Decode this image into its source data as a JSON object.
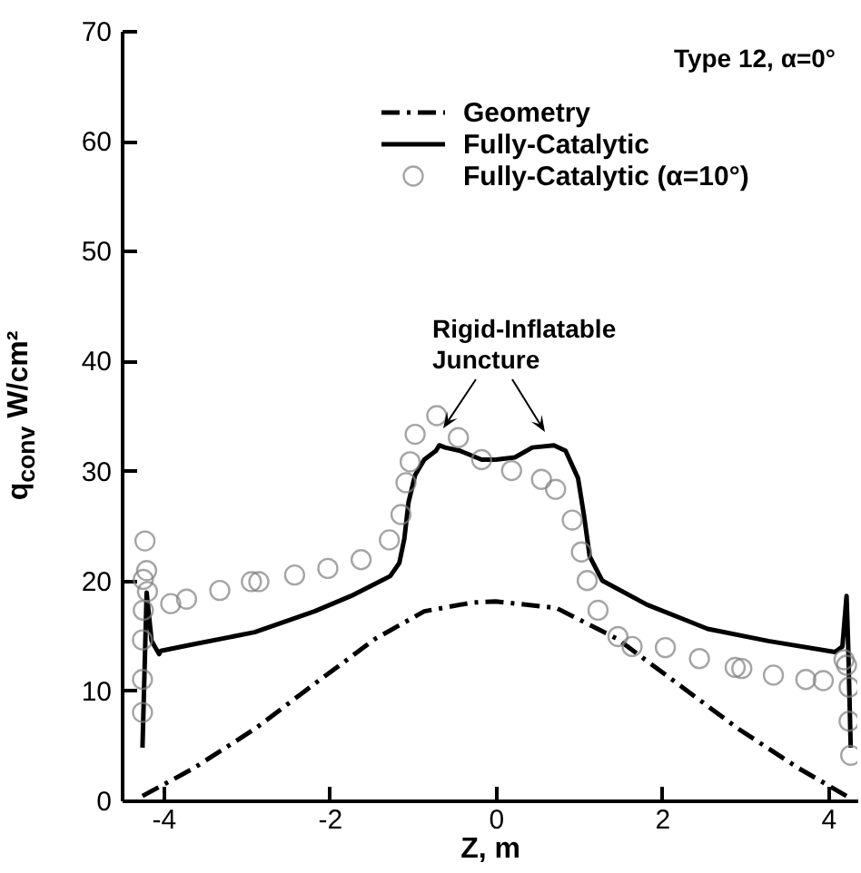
{
  "chart_data": {
    "type": "line",
    "xlabel": "Z, m",
    "ylabel": "q$_{conv}$ W/cm²",
    "legend_title": "Type 12, α=0°",
    "legend": "top right",
    "xlim": [
      -4.5,
      4.35
    ],
    "ylim": [
      0,
      70
    ],
    "xticks": [
      -4,
      -2,
      0,
      2,
      4
    ],
    "yticks": [
      0,
      10,
      20,
      30,
      40,
      50,
      60,
      70
    ],
    "grid": false,
    "annotations": [
      "Rigid-Inflatable Juncture"
    ],
    "series": [
      {
        "name": "Geometry",
        "color": "#000000",
        "line_style": "dashdot",
        "x": [
          -4.25,
          -3.64,
          -2.9,
          -2.18,
          -1.45,
          -0.86,
          -0.28,
          0,
          0.73,
          1.46,
          2.19,
          2.92,
          3.65,
          4.22
        ],
        "values": [
          0.4,
          2.9,
          6.5,
          10.6,
          14.7,
          17.2,
          18,
          18.1,
          17.5,
          14.7,
          10.6,
          6.5,
          2.9,
          0.4
        ]
      },
      {
        "name": "Fully-Catalytic",
        "color": "#000000",
        "line_style": "solid",
        "x": [
          -4.25,
          -4.2,
          -4.14,
          -4.05,
          -4.03,
          -3.64,
          -2.9,
          -2.18,
          -1.74,
          -1.45,
          -1.27,
          -1.16,
          -1.1,
          -1.05,
          -0.97,
          -0.86,
          -0.72,
          -0.68,
          -0.61,
          -0.43,
          -0.17,
          0,
          0.23,
          0.44,
          0.7,
          0.84,
          0.99,
          1.06,
          1.13,
          1.28,
          1.82,
          2.55,
          3.28,
          4.08,
          4.17,
          4.22,
          4.24,
          4.27
        ],
        "values": [
          4.8,
          18.9,
          14.5,
          13.3,
          13.6,
          14.2,
          15.3,
          17.2,
          18.6,
          19.7,
          20.4,
          21.6,
          23.8,
          27.1,
          29.6,
          31,
          31.8,
          32.3,
          32.1,
          31.8,
          31,
          31,
          31.2,
          32.1,
          32.3,
          31.8,
          29.3,
          26,
          22.2,
          20,
          17.8,
          15.6,
          14.5,
          13.5,
          14,
          18.6,
          14,
          4.8
        ]
      },
      {
        "name": "Fully-Catalytic (α=10°)",
        "type": "scatter",
        "marker": "circle",
        "color": "#808080",
        "x": [
          -4.22,
          -4.2,
          -4.24,
          -4.19,
          -4.24,
          -4.25,
          -4.25,
          -4.25,
          -3.91,
          -3.72,
          -3.32,
          -2.94,
          -2.85,
          -2.42,
          -2.02,
          -1.62,
          -1.28,
          -1.14,
          -1.08,
          -1.03,
          -0.97,
          -0.71,
          -0.45,
          -0.17,
          0.19,
          0.55,
          0.72,
          0.92,
          1.03,
          1.1,
          1.23,
          1.47,
          1.64,
          2.04,
          2.45,
          2.88,
          2.96,
          3.34,
          3.73,
          3.94,
          4.19,
          4.22,
          4.25,
          4.25,
          4.27
        ],
        "values": [
          23.6,
          20.9,
          20.1,
          19,
          17.3,
          14.6,
          11,
          8,
          17.9,
          18.3,
          19.1,
          19.9,
          19.9,
          20.5,
          21.1,
          21.9,
          23.7,
          26,
          28.9,
          30.8,
          33.3,
          35,
          33,
          31,
          30,
          29.2,
          28.3,
          25.5,
          22.6,
          20,
          17.3,
          14.9,
          14,
          13.9,
          12.9,
          12.1,
          12,
          11.4,
          11,
          10.9,
          12.8,
          12.3,
          10.3,
          7.2,
          4.1
        ]
      }
    ]
  }
}
